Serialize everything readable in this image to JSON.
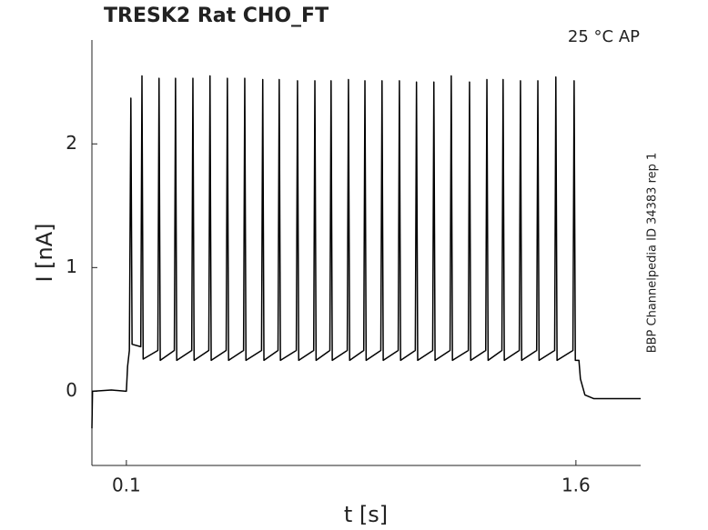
{
  "chart_data": {
    "type": "line",
    "title": "TRESK2  Rat  CHO_FT",
    "subtitle": "25 °C  AP",
    "annotation": "BBP Channelpedia ID 34383 rep 1",
    "xlabel": "t [s]",
    "ylabel": "I [nA]",
    "xlim": [
      -0.015,
      1.816
    ],
    "ylim": [
      -0.6,
      2.84
    ],
    "xticks": [
      0.1,
      1.6
    ],
    "yticks": [
      0,
      1,
      2
    ],
    "color": "#000000",
    "x": [
      -0.015,
      -0.013,
      0.05,
      0.1,
      0.104,
      0.11,
      0.115,
      0.119,
      0.148,
      0.152,
      0.156,
      0.205,
      0.209,
      0.213,
      0.26,
      0.264,
      0.268,
      0.318,
      0.322,
      0.326,
      0.375,
      0.379,
      0.383,
      0.433,
      0.437,
      0.441,
      0.491,
      0.495,
      0.499,
      0.551,
      0.555,
      0.559,
      0.606,
      0.61,
      0.614,
      0.667,
      0.671,
      0.675,
      0.725,
      0.729,
      0.733,
      0.779,
      0.783,
      0.787,
      0.837,
      0.841,
      0.845,
      0.892,
      0.896,
      0.9,
      0.949,
      0.953,
      0.957,
      1.007,
      1.011,
      1.015,
      1.064,
      1.068,
      1.072,
      1.122,
      1.126,
      1.13,
      1.18,
      1.184,
      1.188,
      1.241,
      1.245,
      1.249,
      1.299,
      1.303,
      1.307,
      1.353,
      1.357,
      1.361,
      1.411,
      1.415,
      1.419,
      1.469,
      1.473,
      1.477,
      1.529,
      1.533,
      1.537,
      1.59,
      1.594,
      1.598,
      1.61,
      1.615,
      1.63,
      1.66,
      1.816
    ],
    "values": [
      -0.3,
      0,
      0.01,
      0,
      0.2,
      0.33,
      2.37,
      0.38,
      0.36,
      2.55,
      0.26,
      0.33,
      2.53,
      0.25,
      0.33,
      2.53,
      0.25,
      0.33,
      2.53,
      0.25,
      0.33,
      2.55,
      0.25,
      0.33,
      2.53,
      0.25,
      0.33,
      2.53,
      0.25,
      0.33,
      2.52,
      0.25,
      0.33,
      2.52,
      0.25,
      0.33,
      2.51,
      0.25,
      0.33,
      2.51,
      0.25,
      0.33,
      2.51,
      0.25,
      0.33,
      2.52,
      0.25,
      0.33,
      2.51,
      0.25,
      0.33,
      2.51,
      0.25,
      0.33,
      2.51,
      0.25,
      0.33,
      2.5,
      0.25,
      0.33,
      2.5,
      0.25,
      0.33,
      2.55,
      0.25,
      0.33,
      2.5,
      0.25,
      0.33,
      2.52,
      0.25,
      0.33,
      2.52,
      0.25,
      0.33,
      2.51,
      0.25,
      0.33,
      2.51,
      0.25,
      0.33,
      2.54,
      0.25,
      0.33,
      2.51,
      0.25,
      0.25,
      0.1,
      -0.03,
      -0.06,
      -0.06
    ]
  }
}
